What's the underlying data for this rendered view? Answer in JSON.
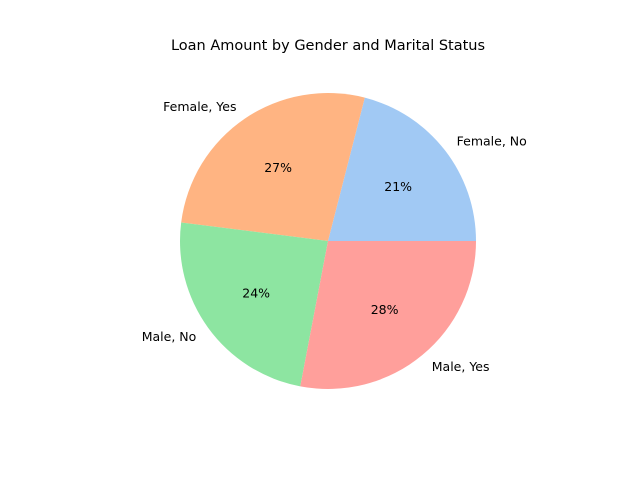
{
  "chart_data": {
    "type": "pie",
    "title": "Loan Amount by Gender and Marital Status",
    "start_angle_deg": 0,
    "direction": "counterclockwise",
    "slices": [
      {
        "label": "Female, No",
        "pct_label": "21%",
        "value": 21,
        "color": "#a1c9f4"
      },
      {
        "label": "Female, Yes",
        "pct_label": "27%",
        "value": 27,
        "color": "#ffb482"
      },
      {
        "label": "Male, No",
        "pct_label": "24%",
        "value": 24,
        "color": "#8de5a1"
      },
      {
        "label": "Male, Yes",
        "pct_label": "28%",
        "value": 28,
        "color": "#ff9f9b"
      }
    ]
  }
}
